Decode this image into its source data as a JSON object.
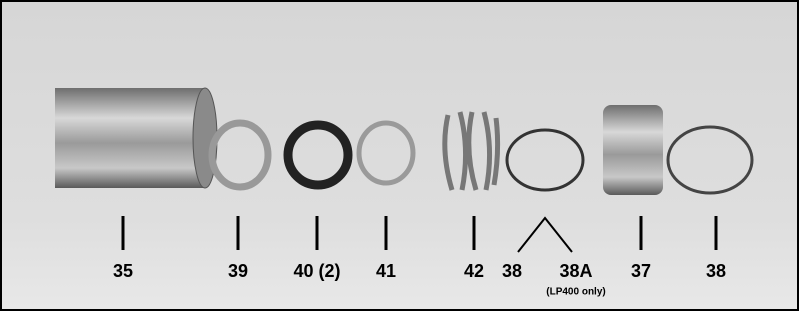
{
  "parts": [
    {
      "label": "35"
    },
    {
      "label": "39"
    },
    {
      "label": "40 (2)"
    },
    {
      "label": "41"
    },
    {
      "label": "42"
    },
    {
      "label": "38"
    },
    {
      "label": "38A",
      "note": "(LP400 only)"
    },
    {
      "label": "37"
    },
    {
      "label": "38"
    }
  ]
}
